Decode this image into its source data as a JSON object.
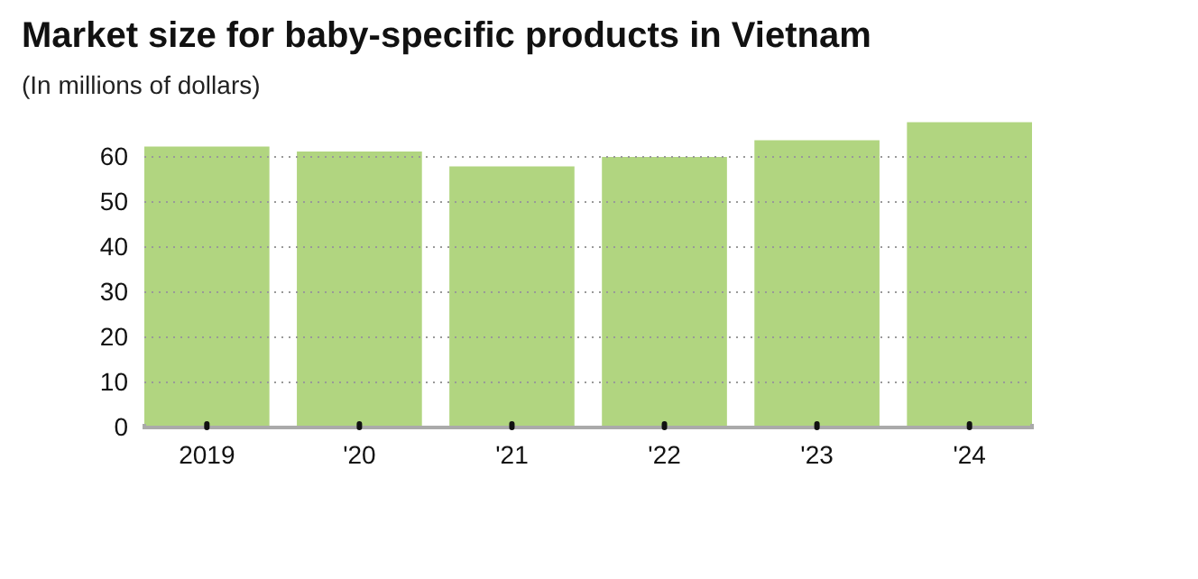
{
  "chart_data": {
    "type": "bar",
    "title": "Market size for baby-specific products in Vietnam",
    "subtitle": "(In millions of dollars)",
    "categories": [
      "2019",
      "'20",
      "'21",
      "'22",
      "'23",
      "'24"
    ],
    "values": [
      62.3,
      61.2,
      57.9,
      60,
      63.7,
      67.7
    ],
    "color": "#b1d580",
    "ylim": [
      0,
      68
    ],
    "yticks": [
      0,
      10,
      20,
      30,
      40,
      50,
      60
    ],
    "grid": "y"
  }
}
